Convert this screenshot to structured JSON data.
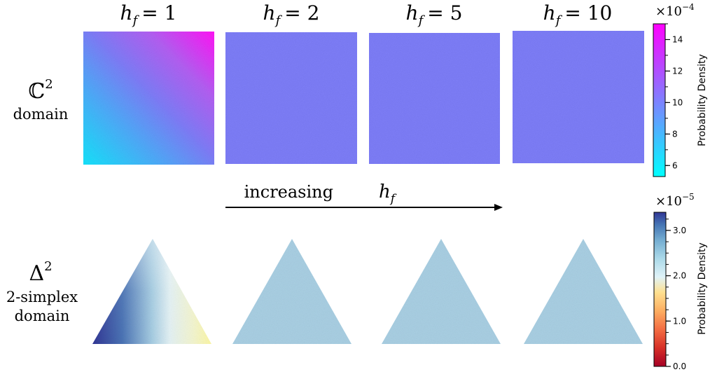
{
  "chart_data": [
    {
      "type": "heatmap",
      "row_label": {
        "symbol": "ℂ",
        "exponent": "2",
        "word": "domain"
      },
      "panels": [
        {
          "title_var": "h",
          "title_sub": "f",
          "title_rel": "= 1",
          "h_f": 1
        },
        {
          "title_var": "h",
          "title_sub": "f",
          "title_rel": "= 2",
          "h_f": 2
        },
        {
          "title_var": "h",
          "title_sub": "f",
          "title_rel": "= 5",
          "h_f": 5
        },
        {
          "title_var": "h",
          "title_sub": "f",
          "title_rel": "= 10",
          "h_f": 10
        }
      ],
      "colorbar": {
        "label": "Probability Density",
        "scale_base": "×10",
        "scale_exponent": "−4",
        "range": [
          5.3,
          15
        ],
        "ticks": [
          "6",
          "8",
          "10",
          "12",
          "14"
        ],
        "tick_values": [
          6,
          8,
          10,
          12,
          14
        ],
        "colormap": [
          "#00ffff",
          "#ff00ff"
        ]
      },
      "uniform_value": 10.2
    },
    {
      "type": "heatmap",
      "row_label": {
        "symbol": "Δ",
        "exponent": "2",
        "word1": "2-simplex",
        "word2": "domain"
      },
      "colorbar": {
        "label": "Probability Density",
        "scale_base": "×10",
        "scale_exponent": "−5",
        "range": [
          0,
          3.4
        ],
        "ticks": [
          "0.0",
          "1.0",
          "2.0",
          "3.0"
        ],
        "tick_values": [
          0,
          1,
          2,
          3
        ],
        "colormap": [
          "#a50026",
          "#f46d43",
          "#fee090",
          "#e0f3f8",
          "#74add1",
          "#313695"
        ]
      },
      "uniform_value": 2.4
    }
  ],
  "annotation": {
    "text": "increasing",
    "var": "h",
    "sub": "f"
  },
  "colors": {
    "uniform_square": "#7d7df7",
    "uniform_triangle": "#a9cfe3",
    "arrow": "#000000"
  }
}
